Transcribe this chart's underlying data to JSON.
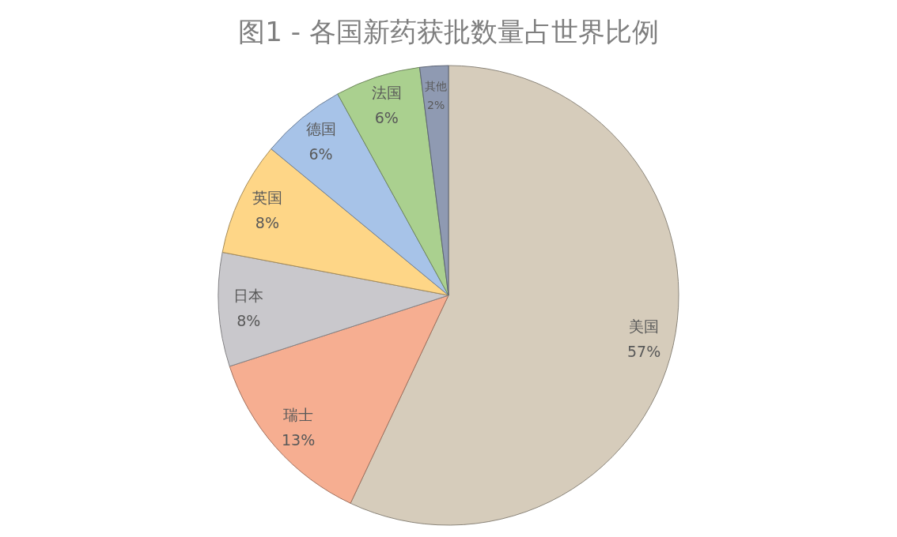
{
  "chart_data": {
    "type": "pie",
    "title": "图1 - 各国新药获批数量占世界比例",
    "categories": [
      "美国",
      "瑞士",
      "日本",
      "英国",
      "德国",
      "法国",
      "其他"
    ],
    "values": [
      57,
      13,
      8,
      8,
      6,
      6,
      2
    ],
    "colors": [
      "#d6ccbb",
      "#f6ae91",
      "#c9c8cc",
      "#fed687",
      "#a7c3e8",
      "#aad08f",
      "#8f9ab2"
    ],
    "value_labels": [
      "57%",
      "13%",
      "8%",
      "8%",
      "6%",
      "6%",
      "2%"
    ]
  }
}
